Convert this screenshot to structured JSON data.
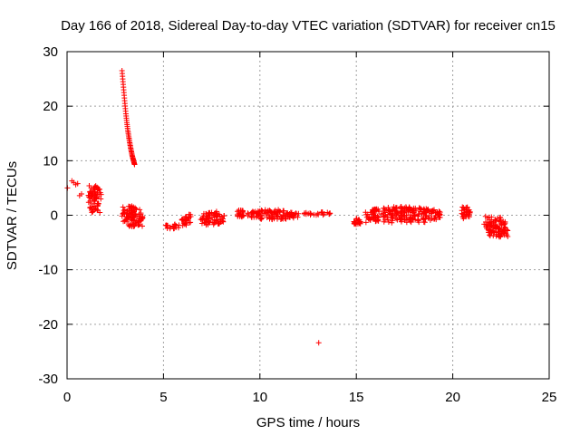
{
  "chart_data": {
    "type": "scatter",
    "title": "Day 166 of 2018, Sidereal Day-to-day VTEC variation (SDTVAR) for receiver cn15",
    "xlabel": "GPS time / hours",
    "ylabel": "SDTVAR / TECUs",
    "xlim": [
      0,
      25
    ],
    "ylim": [
      -30,
      30
    ],
    "xticks": [
      0,
      5,
      10,
      15,
      20,
      25
    ],
    "yticks": [
      -30,
      -20,
      -10,
      0,
      10,
      20,
      30
    ],
    "xtick_labels": [
      "0",
      "5",
      "10",
      "15",
      "20",
      "25"
    ],
    "ytick_labels": [
      "-30",
      "-20",
      "-10",
      "0",
      "10",
      "20",
      "30"
    ],
    "grid": true,
    "marker": "+",
    "series": [
      {
        "name": "SDTVAR",
        "color": "#ff0000",
        "points": [
          [
            0.02,
            5.0
          ],
          [
            0.25,
            6.3
          ],
          [
            0.35,
            6.0
          ],
          [
            0.45,
            5.6
          ],
          [
            0.55,
            5.8
          ],
          [
            0.65,
            3.6
          ],
          [
            0.75,
            3.9
          ],
          [
            1.15,
            5.4
          ],
          [
            1.25,
            5.0
          ],
          [
            1.35,
            4.6
          ],
          [
            1.45,
            4.2
          ],
          [
            1.55,
            3.8
          ],
          [
            1.65,
            3.4
          ],
          [
            1.75,
            3.0
          ],
          [
            1.2,
            2.6
          ],
          [
            1.3,
            2.1
          ],
          [
            1.4,
            1.6
          ],
          [
            1.5,
            1.2
          ],
          [
            1.6,
            0.9
          ],
          [
            1.7,
            0.5
          ],
          [
            2.85,
            26.5
          ],
          [
            2.9,
            24.5
          ],
          [
            2.95,
            22.5
          ],
          [
            3.0,
            20.5
          ],
          [
            3.05,
            18.6
          ],
          [
            3.1,
            17.0
          ],
          [
            3.15,
            15.6
          ],
          [
            3.2,
            14.4
          ],
          [
            3.25,
            13.3
          ],
          [
            3.3,
            12.3
          ],
          [
            3.35,
            11.4
          ],
          [
            3.4,
            10.6
          ],
          [
            3.45,
            10.0
          ],
          [
            3.5,
            9.3
          ],
          [
            2.9,
            1.5
          ],
          [
            3.0,
            1.0
          ],
          [
            3.1,
            0.4
          ],
          [
            3.2,
            -0.1
          ],
          [
            3.3,
            -0.6
          ],
          [
            3.45,
            -1.0
          ],
          [
            3.6,
            -1.4
          ],
          [
            3.75,
            -1.7
          ],
          [
            3.9,
            -2.0
          ],
          [
            5.2,
            -2.4
          ],
          [
            5.35,
            -2.2
          ],
          [
            5.5,
            -2.0
          ],
          [
            5.65,
            -1.9
          ],
          [
            5.8,
            -1.8
          ],
          [
            6.0,
            -1.9
          ],
          [
            6.1,
            -1.5
          ],
          [
            6.2,
            -0.9
          ],
          [
            6.3,
            -0.4
          ],
          [
            6.4,
            0.1
          ],
          [
            7.0,
            -1.5
          ],
          [
            7.1,
            -0.9
          ],
          [
            7.2,
            -0.2
          ],
          [
            7.35,
            0.3
          ],
          [
            7.5,
            0.5
          ],
          [
            7.65,
            0.3
          ],
          [
            7.8,
            -0.2
          ],
          [
            7.95,
            -0.7
          ],
          [
            8.1,
            -1.2
          ],
          [
            7.3,
            -1.6
          ],
          [
            7.6,
            -1.7
          ],
          [
            7.9,
            -1.5
          ],
          [
            8.15,
            -0.1
          ],
          [
            8.9,
            0.4
          ],
          [
            9.0,
            0.9
          ],
          [
            9.1,
            0.6
          ],
          [
            9.05,
            -0.2
          ],
          [
            9.4,
            0.2
          ],
          [
            9.6,
            0.5
          ],
          [
            9.8,
            0.3
          ],
          [
            10.0,
            0.7
          ],
          [
            10.2,
            0.4
          ],
          [
            10.4,
            0.8
          ],
          [
            10.6,
            0.5
          ],
          [
            10.8,
            0.9
          ],
          [
            11.0,
            0.6
          ],
          [
            11.2,
            0.8
          ],
          [
            11.4,
            0.4
          ],
          [
            11.6,
            0.5
          ],
          [
            11.8,
            0.2
          ],
          [
            12.0,
            0.3
          ],
          [
            10.1,
            -0.5
          ],
          [
            10.5,
            -0.3
          ],
          [
            10.9,
            -0.4
          ],
          [
            11.3,
            -0.6
          ],
          [
            11.7,
            -0.2
          ],
          [
            12.4,
            0.2
          ],
          [
            12.6,
            0.4
          ],
          [
            12.8,
            0.1
          ],
          [
            13.0,
            0.3
          ],
          [
            13.5,
            0.5
          ],
          [
            13.6,
            0.2
          ],
          [
            13.05,
            -23.4
          ],
          [
            14.9,
            -1.6
          ],
          [
            15.0,
            -1.0
          ],
          [
            15.1,
            -0.8
          ],
          [
            15.2,
            -1.3
          ],
          [
            15.5,
            -1.3
          ],
          [
            15.7,
            -0.8
          ],
          [
            15.9,
            -0.5
          ],
          [
            16.1,
            -0.2
          ],
          [
            16.3,
            0.2
          ],
          [
            16.5,
            0.5
          ],
          [
            16.7,
            0.8
          ],
          [
            16.9,
            1.1
          ],
          [
            17.1,
            1.4
          ],
          [
            17.3,
            1.5
          ],
          [
            17.5,
            1.3
          ],
          [
            17.7,
            0.8
          ],
          [
            17.9,
            0.5
          ],
          [
            18.1,
            0.9
          ],
          [
            18.3,
            1.1
          ],
          [
            18.5,
            1.0
          ],
          [
            18.7,
            0.9
          ],
          [
            18.9,
            0.7
          ],
          [
            19.1,
            0.5
          ],
          [
            19.3,
            0.3
          ],
          [
            16.0,
            -0.8
          ],
          [
            16.4,
            -0.3
          ],
          [
            17.0,
            0.3
          ],
          [
            17.6,
            -0.3
          ],
          [
            17.95,
            -0.7
          ],
          [
            18.4,
            0.2
          ],
          [
            20.5,
            1.5
          ],
          [
            20.6,
            1.0
          ],
          [
            20.7,
            0.4
          ],
          [
            20.8,
            -0.2
          ],
          [
            20.9,
            0.6
          ],
          [
            20.55,
            -0.6
          ],
          [
            21.7,
            -0.2
          ],
          [
            21.8,
            -0.5
          ],
          [
            21.9,
            -0.8
          ],
          [
            22.0,
            -1.1
          ],
          [
            22.1,
            -1.4
          ],
          [
            22.2,
            -1.7
          ],
          [
            22.3,
            -2.0
          ],
          [
            22.4,
            -2.4
          ],
          [
            22.5,
            -2.7
          ],
          [
            21.95,
            -1.8
          ],
          [
            22.25,
            -2.5
          ],
          [
            22.45,
            -3.0
          ],
          [
            22.7,
            -2.2
          ],
          [
            22.75,
            -3.3
          ],
          [
            22.8,
            -3.6
          ],
          [
            22.85,
            -3.9
          ]
        ]
      }
    ],
    "clusters": [
      {
        "x0": 1.1,
        "x1": 1.8,
        "y0": 0.3,
        "y1": 5.5
      },
      {
        "x0": 2.85,
        "x1": 3.95,
        "y0": -2.1,
        "y1": 1.7
      },
      {
        "x0": 5.1,
        "x1": 5.9,
        "y0": -2.5,
        "y1": -1.6
      },
      {
        "x0": 5.95,
        "x1": 6.45,
        "y0": -2.1,
        "y1": 0.3
      },
      {
        "x0": 6.9,
        "x1": 8.2,
        "y0": -1.9,
        "y1": 0.7
      },
      {
        "x0": 8.8,
        "x1": 9.2,
        "y0": -0.4,
        "y1": 1.0
      },
      {
        "x0": 9.3,
        "x1": 12.1,
        "y0": -0.8,
        "y1": 1.0
      },
      {
        "x0": 12.3,
        "x1": 13.65,
        "y0": 0.0,
        "y1": 0.6
      },
      {
        "x0": 14.85,
        "x1": 15.25,
        "y0": -1.8,
        "y1": -0.6
      },
      {
        "x0": 15.4,
        "x1": 19.4,
        "y0": -1.5,
        "y1": 1.6
      },
      {
        "x0": 20.45,
        "x1": 20.95,
        "y0": -0.8,
        "y1": 1.6
      },
      {
        "x0": 21.6,
        "x1": 22.9,
        "y0": -4.0,
        "y1": -0.1
      }
    ]
  }
}
